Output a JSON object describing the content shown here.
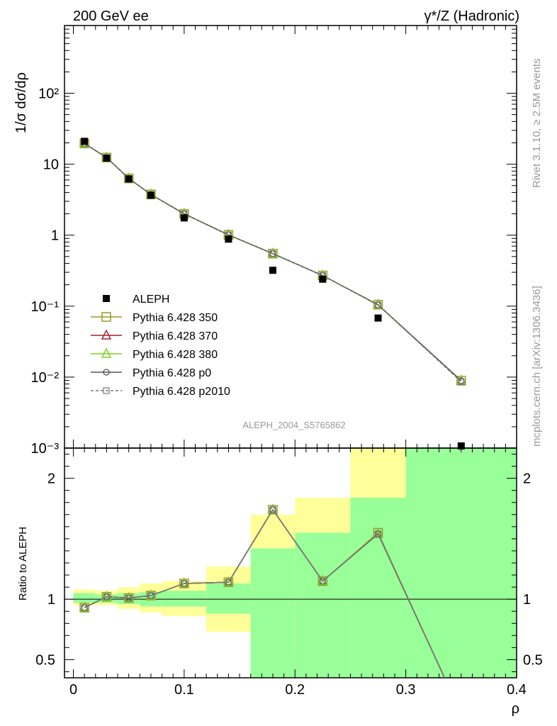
{
  "header": {
    "left_title": "200 GeV ee",
    "right_title": "γ*/Z (Hadronic)"
  },
  "side_text": {
    "rivet": "Rivet 3.1.10, ≥ 2.5M events",
    "mcplots": "mcplots.cern.ch [arXiv:1306.3436]"
  },
  "watermark": "ALEPH_2004_S5765862",
  "chart_data": [
    {
      "type": "scatter",
      "panel": "main",
      "ylabel": "1/σ  dσ/dρ",
      "yscale": "log",
      "ylim": [
        0.001,
        900
      ],
      "xlim": [
        -0.008,
        0.4
      ],
      "ytick_labels": [
        "10⁻³",
        "10⁻²",
        "10⁻¹",
        "1",
        "10",
        "10²"
      ],
      "ytick_values": [
        0.001,
        0.01,
        0.1,
        1,
        10,
        100
      ],
      "legend_position": "lower-left",
      "series": [
        {
          "name": "ALEPH",
          "style": "data",
          "color": "#000000",
          "x": [
            0.01,
            0.03,
            0.05,
            0.07,
            0.1,
            0.14,
            0.18,
            0.225,
            0.275,
            0.35
          ],
          "y": [
            21.0,
            12.2,
            6.2,
            3.65,
            1.75,
            0.88,
            0.32,
            0.24,
            0.068,
            0.00095
          ]
        },
        {
          "name": "Pythia 6.428 350",
          "style": "mc",
          "color": "#9a9a2a",
          "marker": "open-square",
          "x": [
            0.01,
            0.03,
            0.05,
            0.07,
            0.1,
            0.14,
            0.18,
            0.225,
            0.275,
            0.35
          ],
          "y": [
            19.6,
            12.4,
            6.3,
            3.75,
            2.0,
            1.01,
            0.55,
            0.27,
            0.105,
            0.0089
          ]
        },
        {
          "name": "Pythia 6.428 370",
          "style": "mc",
          "color": "#a0202a",
          "marker": "open-triangle",
          "x": [
            0.01,
            0.03,
            0.05,
            0.07,
            0.1,
            0.14,
            0.18,
            0.225,
            0.275,
            0.35
          ],
          "y": [
            19.6,
            12.4,
            6.3,
            3.75,
            2.0,
            1.01,
            0.55,
            0.27,
            0.104,
            0.0089
          ]
        },
        {
          "name": "Pythia 6.428 380",
          "style": "mc",
          "color": "#7ed321",
          "marker": "open-triangle",
          "x": [
            0.01,
            0.03,
            0.05,
            0.07,
            0.1,
            0.14,
            0.18,
            0.225,
            0.275,
            0.35
          ],
          "y": [
            19.6,
            12.4,
            6.3,
            3.75,
            2.0,
            1.01,
            0.55,
            0.27,
            0.104,
            0.0089
          ]
        },
        {
          "name": "Pythia 6.428 p0",
          "style": "mc",
          "color": "#555555",
          "marker": "open-circle",
          "x": [
            0.01,
            0.03,
            0.05,
            0.07,
            0.1,
            0.14,
            0.18,
            0.225,
            0.275,
            0.35
          ],
          "y": [
            19.6,
            12.4,
            6.3,
            3.75,
            2.0,
            1.01,
            0.55,
            0.27,
            0.104,
            0.0089
          ]
        },
        {
          "name": "Pythia 6.428 p2010",
          "style": "mc-dashed",
          "color": "#777777",
          "marker": "open-square-small",
          "x": [
            0.01,
            0.03,
            0.05,
            0.07,
            0.1,
            0.14,
            0.18,
            0.225,
            0.275,
            0.35
          ],
          "y": [
            19.6,
            12.4,
            6.3,
            3.75,
            2.0,
            1.01,
            0.55,
            0.27,
            0.104,
            0.0086
          ]
        }
      ]
    },
    {
      "type": "line",
      "panel": "ratio",
      "ylabel": "Ratio to ALEPH",
      "xlabel": "ρ",
      "ylim": [
        0.35,
        2.25
      ],
      "xlim": [
        -0.008,
        0.4
      ],
      "xtick_labels": [
        "0",
        "0.1",
        "0.2",
        "0.3",
        "0.4"
      ],
      "xtick_values": [
        0,
        0.1,
        0.2,
        0.3,
        0.4
      ],
      "ytick_labels": [
        "0.5",
        "1",
        "2"
      ],
      "ytick_values": [
        0.5,
        1,
        2
      ],
      "reference_line": 1,
      "uncertainty_bands": [
        {
          "x0": 0.0,
          "x1": 0.02,
          "inner": [
            0.97,
            1.05
          ],
          "outer": [
            0.95,
            1.08
          ]
        },
        {
          "x0": 0.02,
          "x1": 0.04,
          "inner": [
            0.97,
            1.04
          ],
          "outer": [
            0.95,
            1.07
          ]
        },
        {
          "x0": 0.04,
          "x1": 0.06,
          "inner": [
            0.96,
            1.05
          ],
          "outer": [
            0.92,
            1.1
          ]
        },
        {
          "x0": 0.06,
          "x1": 0.08,
          "inner": [
            0.94,
            1.06
          ],
          "outer": [
            0.89,
            1.13
          ]
        },
        {
          "x0": 0.08,
          "x1": 0.12,
          "inner": [
            0.94,
            1.07
          ],
          "outer": [
            0.86,
            1.15
          ]
        },
        {
          "x0": 0.12,
          "x1": 0.16,
          "inner": [
            0.88,
            1.13
          ],
          "outer": [
            0.73,
            1.27
          ]
        },
        {
          "x0": 0.16,
          "x1": 0.2,
          "inner": [
            0.35,
            1.42
          ],
          "outer": [
            0.35,
            1.7
          ]
        },
        {
          "x0": 0.2,
          "x1": 0.25,
          "inner": [
            0.35,
            1.55
          ],
          "outer": [
            0.35,
            1.84
          ]
        },
        {
          "x0": 0.25,
          "x1": 0.3,
          "inner": [
            0.35,
            1.84
          ],
          "outer": [
            0.35,
            2.25
          ]
        },
        {
          "x0": 0.3,
          "x1": 0.4,
          "inner": [
            0.35,
            2.25
          ],
          "outer": [
            0.35,
            2.25
          ]
        }
      ],
      "band_colors": {
        "inner": "#99ff99",
        "outer": "#ffff99"
      },
      "series": [
        {
          "name": "Pythia 6.428 350",
          "color": "#9a9a2a",
          "marker": "open-square",
          "x": [
            0.01,
            0.03,
            0.05,
            0.07,
            0.1,
            0.14,
            0.18,
            0.225,
            0.275,
            0.335
          ],
          "y": [
            0.93,
            1.02,
            1.01,
            1.03,
            1.13,
            1.14,
            1.74,
            1.15,
            1.55,
            0.35
          ]
        },
        {
          "name": "Pythia 6.428 370",
          "color": "#a0202a",
          "marker": "open-triangle",
          "x": [
            0.01,
            0.03,
            0.05,
            0.07,
            0.1,
            0.14,
            0.18,
            0.225,
            0.275,
            0.335
          ],
          "y": [
            0.93,
            1.02,
            1.01,
            1.03,
            1.13,
            1.14,
            1.74,
            1.15,
            1.54,
            0.35
          ]
        },
        {
          "name": "Pythia 6.428 380",
          "color": "#7ed321",
          "marker": "open-triangle",
          "x": [
            0.01,
            0.03,
            0.05,
            0.07,
            0.1,
            0.14,
            0.18,
            0.225,
            0.275,
            0.335
          ],
          "y": [
            0.93,
            1.02,
            1.01,
            1.03,
            1.13,
            1.14,
            1.74,
            1.15,
            1.54,
            0.35
          ]
        },
        {
          "name": "Pythia 6.428 p0",
          "color": "#555555",
          "marker": "open-circle",
          "x": [
            0.01,
            0.03,
            0.05,
            0.07,
            0.1,
            0.14,
            0.18,
            0.225,
            0.275,
            0.335
          ],
          "y": [
            0.93,
            1.02,
            1.01,
            1.03,
            1.13,
            1.14,
            1.74,
            1.15,
            1.54,
            0.35
          ]
        },
        {
          "name": "Pythia 6.428 p2010",
          "color": "#777777",
          "marker": "open-square-small",
          "x": [
            0.01,
            0.03,
            0.05,
            0.07,
            0.1,
            0.14,
            0.18,
            0.225,
            0.275,
            0.335
          ],
          "y": [
            0.93,
            1.02,
            1.01,
            1.03,
            1.13,
            1.14,
            1.74,
            1.15,
            1.54,
            0.35
          ]
        }
      ]
    }
  ]
}
